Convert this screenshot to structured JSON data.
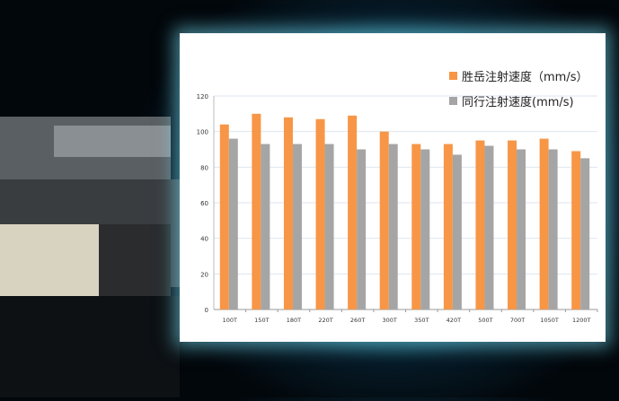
{
  "chart_data": {
    "type": "bar",
    "categories": [
      "100T",
      "150T",
      "180T",
      "220T",
      "260T",
      "300T",
      "350T",
      "420T",
      "500T",
      "700T",
      "1050T",
      "1200T"
    ],
    "series": [
      {
        "name": "胜岳注射速度（mm/s）",
        "color": "#f79646",
        "values": [
          104,
          110,
          108,
          107,
          109,
          100,
          93,
          93,
          95,
          95,
          96,
          89
        ]
      },
      {
        "name": "同行注射速度(mm/s)",
        "color": "#a5a5a5",
        "values": [
          96,
          93,
          93,
          93,
          90,
          93,
          90,
          87,
          92,
          90,
          90,
          85
        ]
      }
    ],
    "ylim": [
      0,
      120
    ],
    "yticks": [
      0,
      20,
      40,
      60,
      80,
      100,
      120
    ],
    "grid": true,
    "legend_position": "top-right"
  }
}
